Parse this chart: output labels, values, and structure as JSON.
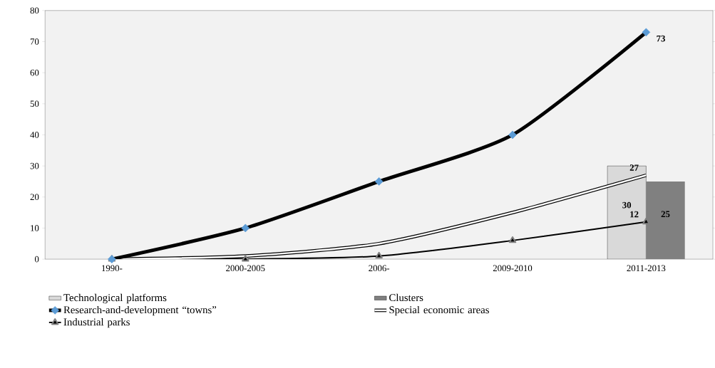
{
  "chart_data": {
    "type": "line",
    "categories": [
      "1990-",
      "2000-2005",
      "2006-",
      "2009-2010",
      "2011-2013"
    ],
    "series": [
      {
        "name": "Technological platforms",
        "type": "bar",
        "color": "#d9d9d9",
        "values": [
          null,
          null,
          null,
          null,
          30
        ],
        "value_labels": [
          null,
          null,
          null,
          null,
          "30"
        ]
      },
      {
        "name": "Clusters",
        "type": "bar",
        "color": "#808080",
        "values": [
          null,
          null,
          null,
          null,
          25
        ],
        "value_labels": [
          null,
          null,
          null,
          null,
          "25"
        ]
      },
      {
        "name": "Research-and-development “towns”",
        "color": "#5b9bd5",
        "marker": "diamond",
        "values": [
          0,
          10,
          25,
          40,
          73
        ],
        "value_labels": [
          null,
          null,
          null,
          null,
          "73"
        ]
      },
      {
        "name": "Special economic areas",
        "color": "#000000",
        "marker": "none",
        "values": [
          0,
          1,
          5,
          15,
          27
        ],
        "value_labels": [
          null,
          null,
          null,
          null,
          "27"
        ]
      },
      {
        "name": "Industrial parks",
        "color": "#000000",
        "marker": "triangle",
        "values": [
          0,
          0,
          1,
          6,
          12
        ],
        "value_labels": [
          null,
          null,
          null,
          null,
          "12"
        ]
      }
    ],
    "ylim": [
      0,
      80
    ],
    "yticks": [
      0,
      10,
      20,
      30,
      40,
      50,
      60,
      70,
      80
    ],
    "grid": false,
    "legend": "bottom"
  }
}
